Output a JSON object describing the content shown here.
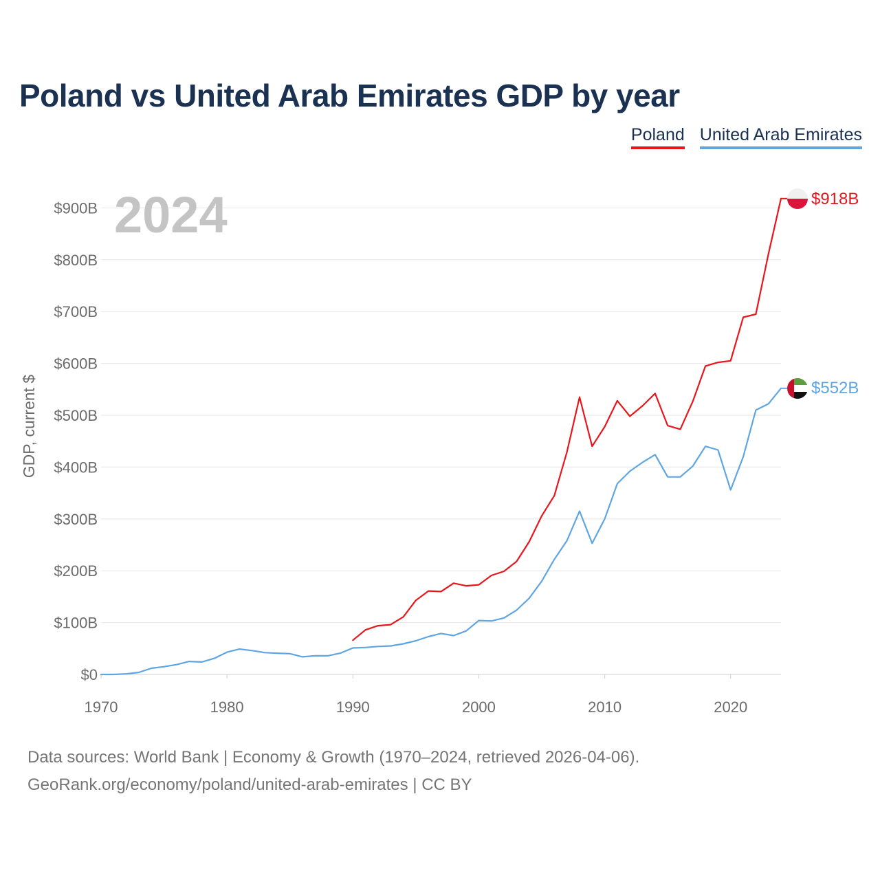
{
  "title": "Poland vs United Arab Emirates GDP by year",
  "legend": [
    {
      "label": "Poland",
      "color": "#e8161b"
    },
    {
      "label": "United Arab Emirates",
      "color": "#5ea5e2"
    }
  ],
  "year_watermark": "2024",
  "source_line1": "Data sources: World Bank | Economy & Growth (1970–2024, retrieved 2026-04-06).",
  "source_line2": "GeoRank.org/economy/poland/united-arab-emirates | CC BY",
  "chart_data": {
    "type": "line",
    "title": "Poland vs United Arab Emirates GDP by year",
    "xlabel": "",
    "ylabel": "GDP, current $",
    "xlim": [
      1970,
      2024
    ],
    "ylim": [
      0,
      1000
    ],
    "x_ticks": [
      1970,
      1980,
      1990,
      2000,
      2010,
      2020
    ],
    "x_tick_labels": [
      "1970",
      "1980",
      "1990",
      "2000",
      "2010",
      "2020"
    ],
    "y_ticks": [
      0,
      100,
      200,
      300,
      400,
      500,
      600,
      700,
      800,
      900
    ],
    "y_tick_labels": [
      "$0",
      "$100B",
      "$200B",
      "$300B",
      "$400B",
      "$500B",
      "$600B",
      "$700B",
      "$800B",
      "$900B"
    ],
    "grid": true,
    "series": [
      {
        "name": "Poland",
        "color": "#e8161b",
        "end_label": "$918B",
        "points": [
          [
            1990,
            66
          ],
          [
            1991,
            86
          ],
          [
            1992,
            94
          ],
          [
            1993,
            96
          ],
          [
            1994,
            111
          ],
          [
            1995,
            143
          ],
          [
            1996,
            161
          ],
          [
            1997,
            160
          ],
          [
            1998,
            176
          ],
          [
            1999,
            171
          ],
          [
            2000,
            173
          ],
          [
            2001,
            191
          ],
          [
            2002,
            199
          ],
          [
            2003,
            218
          ],
          [
            2004,
            256
          ],
          [
            2005,
            306
          ],
          [
            2006,
            345
          ],
          [
            2007,
            429
          ],
          [
            2008,
            535
          ],
          [
            2009,
            440
          ],
          [
            2010,
            478
          ],
          [
            2011,
            528
          ],
          [
            2012,
            498
          ],
          [
            2013,
            518
          ],
          [
            2014,
            542
          ],
          [
            2015,
            480
          ],
          [
            2016,
            473
          ],
          [
            2017,
            527
          ],
          [
            2018,
            595
          ],
          [
            2019,
            602
          ],
          [
            2020,
            605
          ],
          [
            2021,
            689
          ],
          [
            2022,
            695
          ],
          [
            2023,
            811
          ],
          [
            2024,
            918
          ]
        ]
      },
      {
        "name": "United Arab Emirates",
        "color": "#5ea5e2",
        "end_label": "$552B",
        "points": [
          [
            1970,
            0
          ],
          [
            1971,
            0
          ],
          [
            1972,
            1
          ],
          [
            1973,
            4
          ],
          [
            1974,
            12
          ],
          [
            1975,
            15
          ],
          [
            1976,
            19
          ],
          [
            1977,
            25
          ],
          [
            1978,
            24
          ],
          [
            1979,
            31
          ],
          [
            1980,
            43
          ],
          [
            1981,
            49
          ],
          [
            1982,
            46
          ],
          [
            1983,
            42
          ],
          [
            1984,
            41
          ],
          [
            1985,
            40
          ],
          [
            1986,
            34
          ],
          [
            1987,
            36
          ],
          [
            1988,
            36
          ],
          [
            1989,
            41
          ],
          [
            1990,
            51
          ],
          [
            1991,
            52
          ],
          [
            1992,
            54
          ],
          [
            1993,
            55
          ],
          [
            1994,
            59
          ],
          [
            1995,
            65
          ],
          [
            1996,
            73
          ],
          [
            1997,
            79
          ],
          [
            1998,
            75
          ],
          [
            1999,
            84
          ],
          [
            2000,
            104
          ],
          [
            2001,
            103
          ],
          [
            2002,
            109
          ],
          [
            2003,
            124
          ],
          [
            2004,
            147
          ],
          [
            2005,
            180
          ],
          [
            2006,
            222
          ],
          [
            2007,
            258
          ],
          [
            2008,
            315
          ],
          [
            2009,
            253
          ],
          [
            2010,
            300
          ],
          [
            2011,
            368
          ],
          [
            2012,
            392
          ],
          [
            2013,
            409
          ],
          [
            2014,
            424
          ],
          [
            2015,
            381
          ],
          [
            2016,
            381
          ],
          [
            2017,
            402
          ],
          [
            2018,
            440
          ],
          [
            2019,
            433
          ],
          [
            2020,
            356
          ],
          [
            2021,
            420
          ],
          [
            2022,
            510
          ],
          [
            2023,
            522
          ],
          [
            2024,
            552
          ]
        ]
      }
    ]
  }
}
